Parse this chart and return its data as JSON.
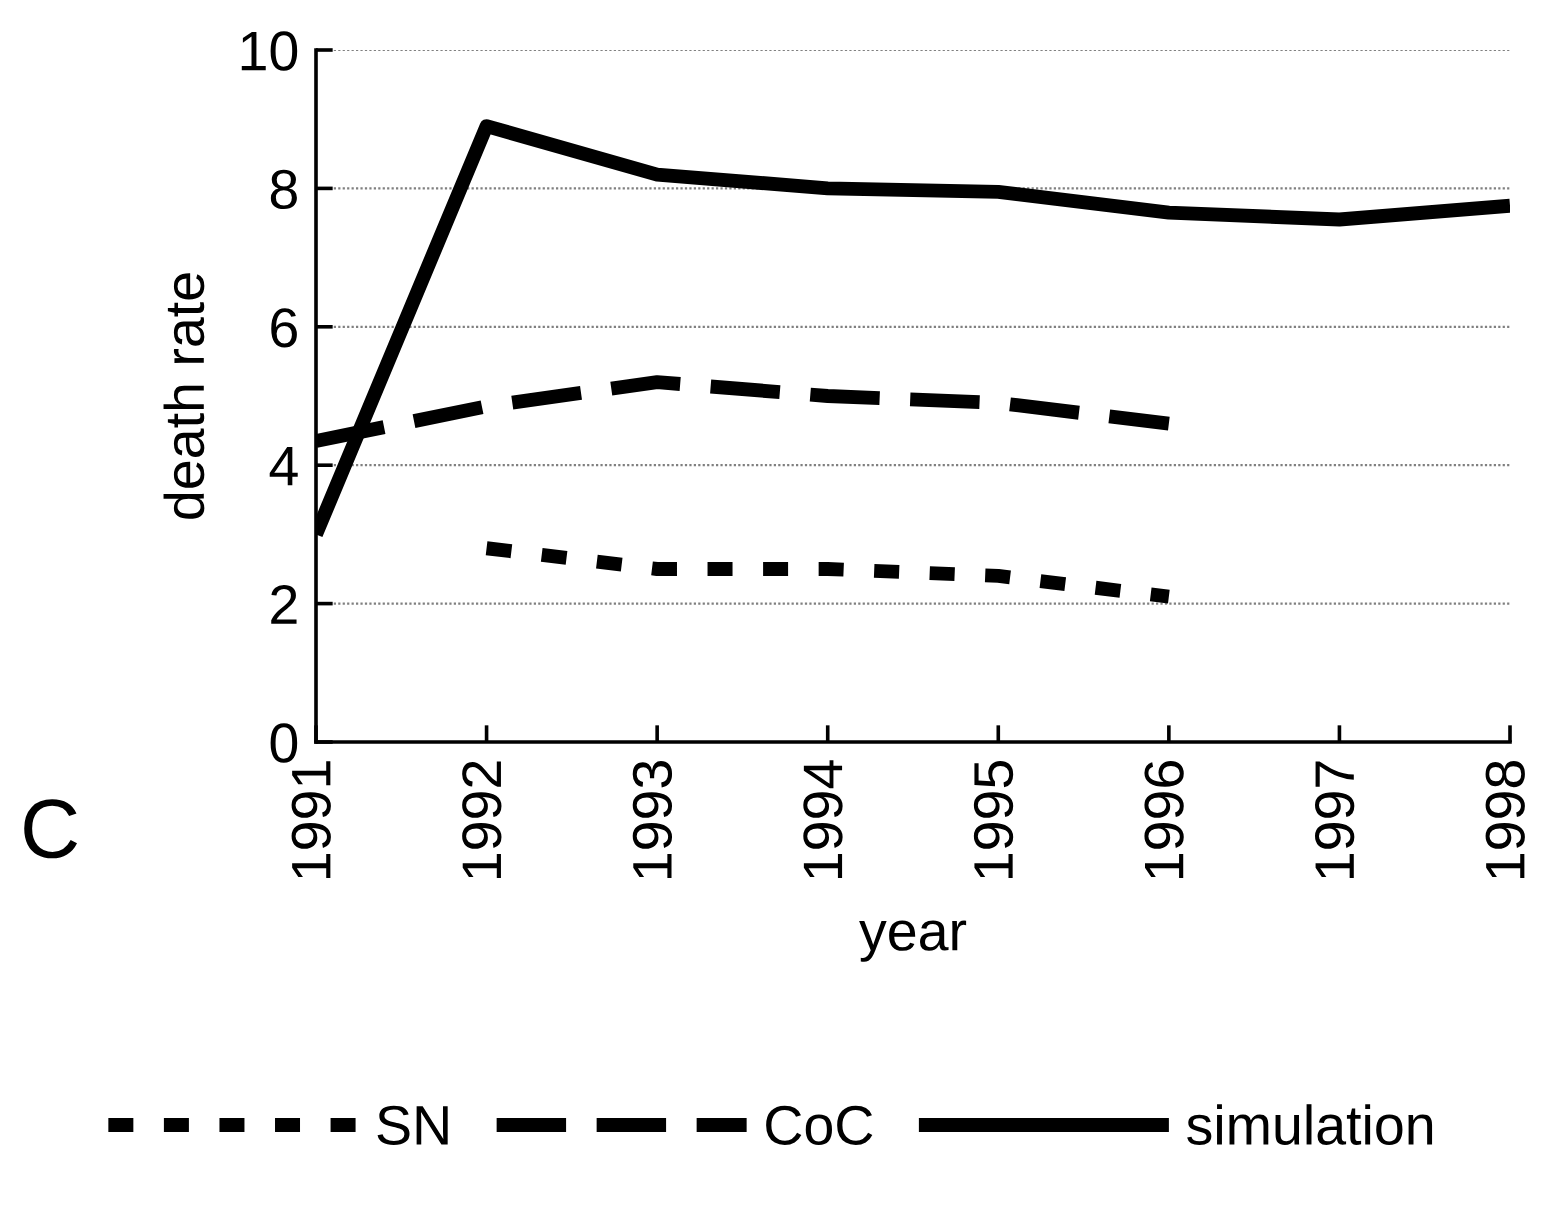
{
  "chart_data": {
    "type": "line",
    "xlabel": "year",
    "ylabel": "death rate",
    "categories": [
      "1991",
      "1992",
      "1993",
      "1994",
      "1995",
      "1996",
      "1997",
      "1998"
    ],
    "series": [
      {
        "name": "SN",
        "color": "#000000",
        "line_style": "dotted",
        "values": [
          null,
          2.8,
          2.5,
          2.5,
          2.4,
          2.1,
          null,
          null
        ]
      },
      {
        "name": "CoC",
        "color": "#000000",
        "line_style": "dashed",
        "values": [
          4.35,
          4.85,
          5.2,
          5.0,
          4.9,
          4.6,
          null,
          null
        ]
      },
      {
        "name": "simulation",
        "color": "#000000",
        "line_style": "solid",
        "values": [
          3.0,
          8.9,
          8.2,
          8.0,
          7.95,
          7.65,
          7.55,
          7.75
        ]
      }
    ],
    "ylim": [
      0,
      10
    ],
    "yticks": [
      0,
      2,
      4,
      6,
      8,
      10
    ],
    "grid": "y",
    "legend": "bottom",
    "marker": "none",
    "annotations": [
      "C"
    ]
  }
}
